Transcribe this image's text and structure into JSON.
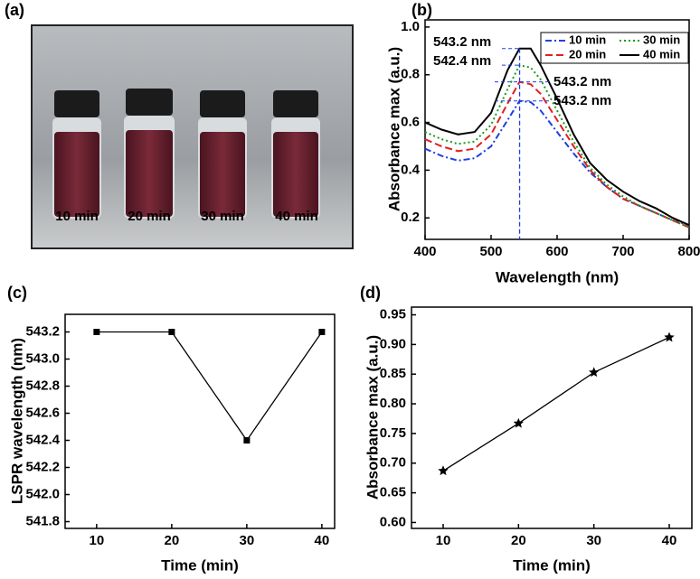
{
  "photo": {
    "panel_label": "(a)",
    "vial_labels": [
      "10 min",
      "20 min",
      "30 min",
      "40 min"
    ]
  },
  "chart_data": [
    {
      "type": "line",
      "panel_label": "(b)",
      "x_label": "Wavelength (nm)",
      "y_label": "Absorbance max (a.u.)",
      "x": [
        400,
        425,
        450,
        475,
        500,
        525,
        543,
        560,
        575,
        600,
        625,
        650,
        675,
        700,
        725,
        750,
        775,
        800
      ],
      "series": [
        {
          "name": "10 min",
          "color": "#1f3fe0",
          "linestyle": "dashdot",
          "values": [
            0.49,
            0.46,
            0.44,
            0.45,
            0.5,
            0.61,
            0.69,
            0.685,
            0.65,
            0.56,
            0.47,
            0.39,
            0.33,
            0.28,
            0.25,
            0.22,
            0.19,
            0.17
          ]
        },
        {
          "name": "20 min",
          "color": "#e02020",
          "linestyle": "dashed",
          "values": [
            0.53,
            0.5,
            0.48,
            0.49,
            0.55,
            0.68,
            0.77,
            0.76,
            0.72,
            0.61,
            0.5,
            0.4,
            0.33,
            0.28,
            0.25,
            0.22,
            0.19,
            0.16
          ]
        },
        {
          "name": "30 min",
          "color": "#1a9a1a",
          "linestyle": "dotted",
          "values": [
            0.56,
            0.53,
            0.51,
            0.52,
            0.59,
            0.74,
            0.84,
            0.83,
            0.78,
            0.65,
            0.52,
            0.41,
            0.34,
            0.29,
            0.25,
            0.22,
            0.19,
            0.16
          ]
        },
        {
          "name": "40 min",
          "color": "#000000",
          "linestyle": "solid",
          "values": [
            0.6,
            0.57,
            0.55,
            0.56,
            0.64,
            0.82,
            0.91,
            0.91,
            0.84,
            0.7,
            0.55,
            0.43,
            0.36,
            0.31,
            0.27,
            0.24,
            0.2,
            0.17
          ]
        }
      ],
      "annotations": [
        "543.2 nm",
        "542.4 nm",
        "543.2 nm",
        "543.2 nm"
      ],
      "xlim": [
        400,
        800
      ],
      "ylim": [
        0.11,
        1.03
      ],
      "xticks": [
        400,
        500,
        600,
        700,
        800
      ],
      "yticks": [
        0.2,
        0.4,
        0.6,
        0.8,
        {
          "value": 1,
          "label": "1.0"
        }
      ],
      "legend": "upper right"
    },
    {
      "type": "line",
      "panel_label": "(c)",
      "x_label": "Time (min)",
      "y_label": "LSPR wavelength (nm)",
      "x": [
        10,
        20,
        30,
        40
      ],
      "values": [
        543.2,
        543.2,
        542.4,
        543.2
      ],
      "color": "#000000",
      "marker": "square",
      "xlim": [
        5.8,
        41.7
      ],
      "ylim": [
        541.75,
        543.33
      ],
      "xticks": [
        10,
        20,
        30,
        40
      ],
      "yticks": [
        541.8,
        {
          "value": 542,
          "label": "542.0"
        },
        542.2,
        542.4,
        542.6,
        542.8,
        {
          "value": 543,
          "label": "543.0"
        },
        543.2
      ]
    },
    {
      "type": "line",
      "panel_label": "(d)",
      "x_label": "Time (min)",
      "y_label": "Absorbance max (a.u.)",
      "x": [
        10,
        20,
        30,
        40
      ],
      "values": [
        0.687,
        0.767,
        0.853,
        0.912
      ],
      "color": "#000000",
      "marker": "star",
      "xlim": [
        5.8,
        43
      ],
      "ylim": [
        0.59,
        0.963
      ],
      "xticks": [
        10,
        20,
        30,
        40
      ],
      "yticks": [
        {
          "value": 0.6,
          "label": "0.60"
        },
        0.65,
        {
          "value": 0.7,
          "label": "0.70"
        },
        0.75,
        {
          "value": 0.8,
          "label": "0.80"
        },
        0.85,
        {
          "value": 0.9,
          "label": "0.90"
        },
        0.95
      ]
    }
  ]
}
